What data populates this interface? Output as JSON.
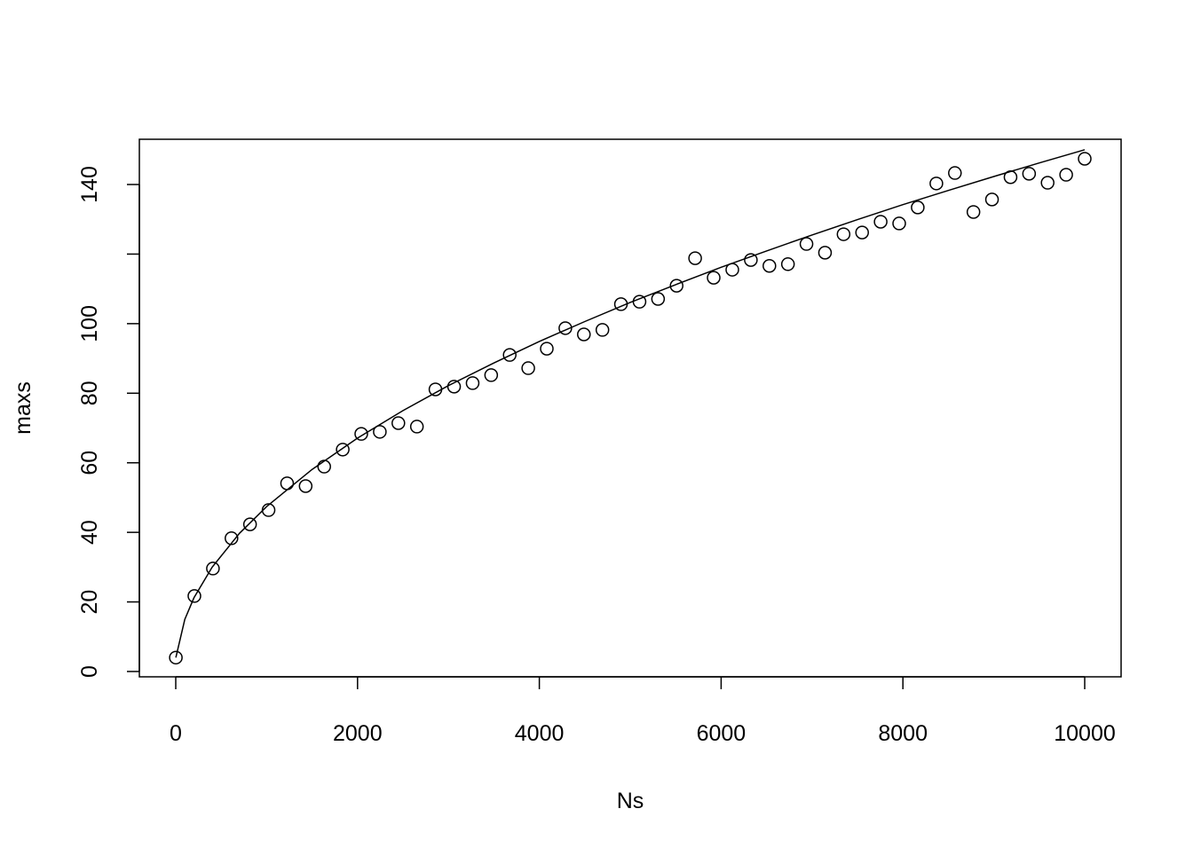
{
  "chart_data": {
    "type": "scatter",
    "title": "",
    "xlabel": "Ns",
    "ylabel": "maxs",
    "xlim": [
      0,
      10000
    ],
    "ylim": [
      0,
      150
    ],
    "x_ticks": [
      0,
      2000,
      4000,
      6000,
      8000,
      10000
    ],
    "y_ticks": [
      0,
      20,
      40,
      60,
      80,
      100,
      120,
      140
    ],
    "y_tick_labels": [
      "0",
      "20",
      "40",
      "60",
      "80",
      "100",
      "",
      "140"
    ],
    "grid": false,
    "legend": "none",
    "points": {
      "marker": "open-circle",
      "x": [
        1,
        205,
        409,
        613,
        817,
        1021,
        1225,
        1429,
        1633,
        1837,
        2041,
        2245,
        2449,
        2653,
        2857,
        3062,
        3266,
        3470,
        3674,
        3878,
        4082,
        4286,
        4490,
        4694,
        4898,
        5102,
        5306,
        5510,
        5714,
        5918,
        6123,
        6327,
        6531,
        6735,
        6939,
        7143,
        7347,
        7551,
        7755,
        7959,
        8163,
        8368,
        8572,
        8776,
        8980,
        9184,
        9388,
        9592,
        9796,
        10000
      ],
      "y": [
        4,
        21.7,
        29.6,
        38.3,
        42.3,
        46.4,
        54.1,
        53.3,
        58.9,
        63.8,
        68.3,
        68.9,
        71.4,
        70.4,
        81.1,
        81.9,
        82.9,
        85.2,
        91,
        87.2,
        92.8,
        98.7,
        96.9,
        98.2,
        105.6,
        106.3,
        107.1,
        110.9,
        118.8,
        113.2,
        115.5,
        118.3,
        116.6,
        117.1,
        122.9,
        120.4,
        125.7,
        126.2,
        129.3,
        128.8,
        133.4,
        140.3,
        143.3,
        132.1,
        135.7,
        142.1,
        143.1,
        140.5,
        142.8,
        147.4
      ]
    },
    "line": {
      "x": [
        1,
        100,
        200,
        400,
        700,
        1000,
        1500,
        2000,
        2500,
        3000,
        3500,
        4000,
        4500,
        5000,
        5500,
        6000,
        6500,
        7000,
        7500,
        8000,
        8500,
        9000,
        9500,
        10000
      ],
      "y": [
        4,
        15,
        21.2,
        30,
        39.7,
        47.4,
        58.1,
        67.1,
        75,
        82.2,
        88.7,
        94.9,
        100.6,
        106.1,
        111.2,
        116.2,
        120.9,
        125.5,
        129.9,
        134.2,
        138.3,
        142.3,
        146.2,
        150
      ]
    },
    "colors": {
      "ink": "#000000",
      "background": "#ffffff"
    }
  }
}
